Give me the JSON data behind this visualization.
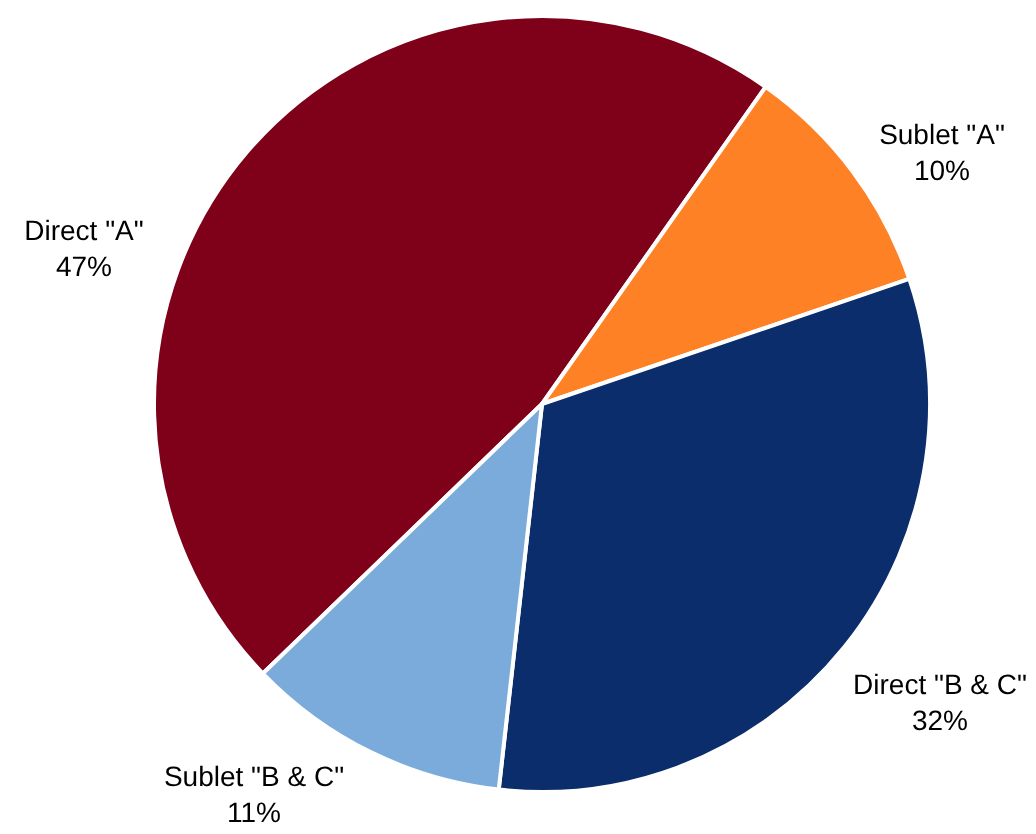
{
  "chart_data": {
    "type": "pie",
    "categories": [
      "Direct \"A\"",
      "Sublet \"A\"",
      "Direct \"B & C\"",
      "Sublet \"B & C\""
    ],
    "values": [
      47,
      10,
      32,
      11
    ],
    "value_labels": [
      "47%",
      "10%",
      "32%",
      "11%"
    ],
    "colors": [
      "#7f0019",
      "#ff8125",
      "#0b2d6b",
      "#7aabdb"
    ]
  }
}
